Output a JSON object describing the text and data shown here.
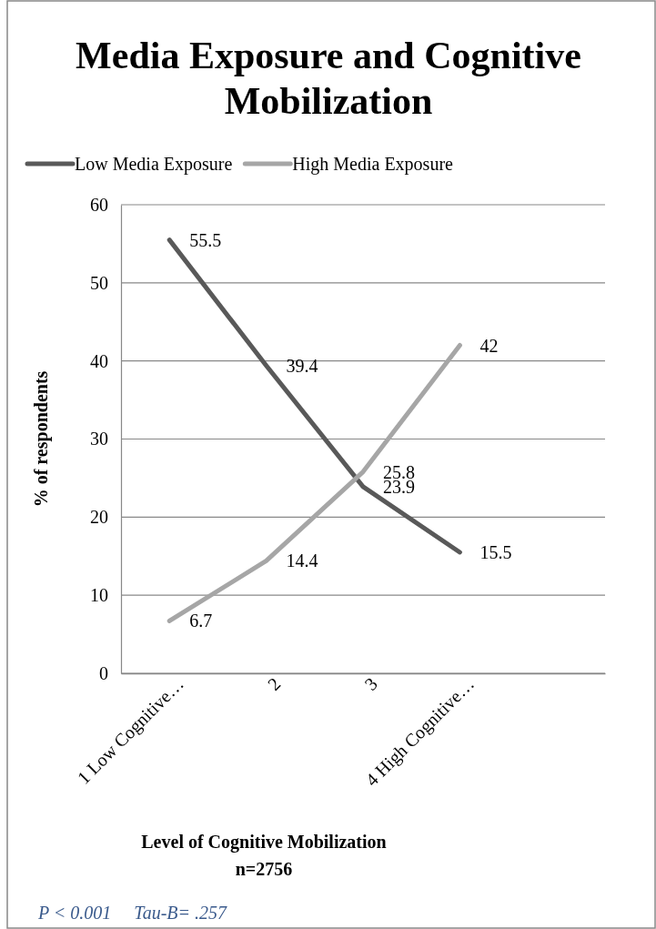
{
  "chart_data": {
    "type": "line",
    "title": "Media Exposure and Cognitive Mobilization",
    "xlabel": "Level of Cognitive Mobilization",
    "ylabel": "% of respondents",
    "annotations": [
      "n=2756",
      "P < 0.001     Tau-B= .257"
    ],
    "categories": [
      "1 Low Cognitive…",
      "2",
      "3",
      "4 High Cognitive…",
      null
    ],
    "series": [
      {
        "name": "Low Media Exposure",
        "color": "#595959",
        "values": [
          55.5,
          39.4,
          23.9,
          15.5,
          null
        ]
      },
      {
        "name": "High Media Exposure",
        "color": "#a6a6a6",
        "values": [
          6.7,
          14.4,
          25.8,
          42,
          null
        ]
      }
    ],
    "ylim": [
      0,
      60
    ],
    "yticks": [
      0,
      10,
      20,
      30,
      40,
      50,
      60
    ],
    "grid": "y",
    "legend": "top",
    "data_labels": true,
    "marker": "none",
    "line_style": "solid"
  }
}
